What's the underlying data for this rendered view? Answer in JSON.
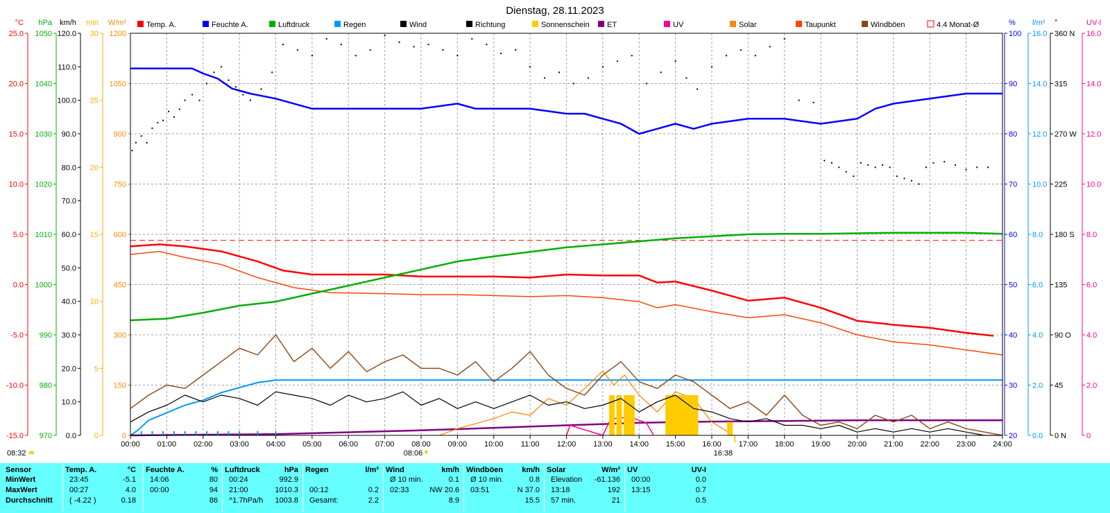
{
  "chart_data": {
    "type": "line",
    "title": "Dienstag, 28.11.2023",
    "x_ticks": [
      "00:00",
      "01:00",
      "02:00",
      "03:00",
      "04:00",
      "05:00",
      "06:00",
      "07:00",
      "08:00",
      "09:00",
      "10:00",
      "11:00",
      "12:00",
      "13:00",
      "14:00",
      "15:00",
      "16:00",
      "17:00",
      "18:00",
      "19:00",
      "20:00",
      "21:00",
      "22:00",
      "23:00",
      "24:00"
    ],
    "sunrise": "08:06",
    "sunset": "16:38",
    "sunshine_start": "08:32",
    "legend": [
      {
        "name": "Temp. A.",
        "color": "#ff0000"
      },
      {
        "name": "Feuchte A.",
        "color": "#0000ff"
      },
      {
        "name": "Luftdruck",
        "color": "#00b000"
      },
      {
        "name": "Regen",
        "color": "#0099ff"
      },
      {
        "name": "Wind",
        "color": "#000000"
      },
      {
        "name": "Richtung",
        "color": "#000000"
      },
      {
        "name": "Sonnenschein",
        "color": "#ffcc00"
      },
      {
        "name": "ET",
        "color": "#800080"
      },
      {
        "name": "UV",
        "color": "#ff0090"
      },
      {
        "name": "Solar",
        "color": "#ff8800"
      },
      {
        "name": "Taupunkt",
        "color": "#ff4400"
      },
      {
        "name": "Windböen",
        "color": "#8b4513"
      },
      {
        "name": "4.4 Monat-Ø",
        "color": "#ff0000"
      }
    ],
    "axes": {
      "temp": {
        "unit": "°C",
        "color": "#ff0000",
        "min": -15,
        "max": 25,
        "ticks": [
          "25.0",
          "20.0",
          "15.0",
          "10.0",
          "5.0",
          "0.0",
          "-5.0",
          "-10.0",
          "-15.0"
        ]
      },
      "pressure": {
        "unit": "hPa",
        "color": "#00b000",
        "min": 970,
        "max": 1050,
        "ticks": [
          "1050",
          "1040",
          "1030",
          "1020",
          "1010",
          "1000",
          "990",
          "980",
          "970"
        ]
      },
      "wind": {
        "unit": "km/h",
        "color": "#000000",
        "min": 0,
        "max": 120,
        "ticks": [
          "120.0",
          "110.0",
          "100.0",
          "90.0",
          "80.0",
          "70.0",
          "60.0",
          "50.0",
          "40.0",
          "30.0",
          "20.0",
          "10.0",
          "0.0"
        ]
      },
      "minutes": {
        "unit": "min",
        "color": "#ffaa00",
        "min": 0,
        "max": 30,
        "ticks": [
          "30",
          "25",
          "20",
          "15",
          "10",
          "5",
          "0"
        ]
      },
      "solar": {
        "unit": "W/m²",
        "color": "#ff8800",
        "min": 0,
        "max": 1200,
        "ticks": [
          "1200",
          "1050",
          "900",
          "750",
          "600",
          "450",
          "300",
          "150",
          "0"
        ]
      },
      "humidity": {
        "unit": "%",
        "color": "#0000ff",
        "min": 20,
        "max": 100,
        "ticks": [
          "100",
          "90",
          "80",
          "70",
          "60",
          "50",
          "40",
          "30",
          "20"
        ]
      },
      "rain": {
        "unit": "l/m²",
        "color": "#0099ff",
        "min": 0,
        "max": 16,
        "ticks": [
          "16.0",
          "14.0",
          "12.0",
          "10.0",
          "8.0",
          "6.0",
          "4.0",
          "2.0",
          "0.0"
        ]
      },
      "direction": {
        "unit": "°",
        "color": "#000000",
        "min": 0,
        "max": 360,
        "ticks": [
          "360 N",
          "315",
          "270 W",
          "225",
          "180 S",
          "135",
          "90 O",
          "45",
          "0 N"
        ]
      },
      "uv": {
        "unit": "UV-I",
        "color": "#ff0090",
        "min": 0,
        "max": 16,
        "ticks": [
          "16.0",
          "14.0",
          "12.0",
          "10.0",
          "8.0",
          "6.0",
          "4.0",
          "2.0",
          "0"
        ]
      }
    },
    "series": [
      {
        "name": "Temp. A.",
        "axis": "temp",
        "x": [
          0,
          0.8,
          1.5,
          2.5,
          3.5,
          4.2,
          5,
          6,
          7,
          8,
          9,
          10,
          11,
          12,
          13,
          14,
          14.5,
          15,
          16,
          17,
          18,
          19,
          20,
          21,
          22,
          23,
          23.75
        ],
        "values": [
          3.8,
          4.0,
          3.8,
          3.3,
          2.3,
          1.4,
          1.0,
          1.0,
          1.0,
          0.8,
          0.8,
          0.8,
          0.7,
          1.0,
          0.9,
          0.9,
          0.2,
          0.3,
          -0.6,
          -1.6,
          -1.3,
          -2.3,
          -3.6,
          -4.0,
          -4.3,
          -4.8,
          -5.1
        ]
      },
      {
        "name": "Taupunkt",
        "axis": "temp",
        "x": [
          0,
          0.8,
          1.5,
          2.5,
          3.5,
          4.5,
          5.5,
          7,
          8,
          9,
          10,
          11,
          12,
          13,
          14,
          14.5,
          15,
          16,
          17,
          18,
          19,
          20,
          21,
          22,
          23,
          24
        ],
        "values": [
          3.0,
          3.3,
          2.7,
          2.0,
          0.7,
          -0.3,
          -0.8,
          -0.9,
          -1.0,
          -1.0,
          -1.1,
          -1.2,
          -1.1,
          -1.3,
          -1.7,
          -2.3,
          -2.0,
          -2.7,
          -3.3,
          -3.0,
          -3.8,
          -5.0,
          -5.7,
          -6.0,
          -6.5,
          -7.0
        ]
      },
      {
        "name": "Feuchte A.",
        "axis": "humidity",
        "x": [
          0,
          1.7,
          2,
          2.4,
          2.8,
          3.3,
          4.0,
          5.0,
          6,
          7,
          8,
          9,
          9.5,
          10,
          11,
          12,
          12.5,
          13,
          13.5,
          14,
          14.5,
          15,
          15.5,
          16,
          17,
          18,
          19,
          20,
          20.5,
          21,
          22,
          23,
          24
        ],
        "values": [
          93,
          93,
          92,
          91,
          89,
          88,
          87,
          85,
          85,
          85,
          85,
          86,
          85,
          85,
          85,
          84,
          84,
          83,
          82,
          80,
          81,
          82,
          81,
          82,
          83,
          83,
          82,
          83,
          85,
          86,
          87,
          88,
          88
        ]
      },
      {
        "name": "Luftdruck",
        "axis": "pressure",
        "x": [
          0,
          1,
          2,
          3,
          4,
          5,
          6,
          7,
          8,
          9,
          10,
          11,
          12,
          13,
          14,
          15,
          16,
          17,
          18,
          19,
          20,
          21,
          22,
          23,
          24
        ],
        "values": [
          992.9,
          993.2,
          994.4,
          995.8,
          996.6,
          998.2,
          999.8,
          1001.4,
          1003.0,
          1004.6,
          1005.6,
          1006.5,
          1007.4,
          1008.0,
          1008.6,
          1009.2,
          1009.6,
          1010.0,
          1010.1,
          1010.1,
          1010.2,
          1010.3,
          1010.3,
          1010.3,
          1010.1
        ]
      },
      {
        "name": "Regen",
        "axis": "rain",
        "x": [
          0,
          0.2,
          0.5,
          1,
          1.5,
          2,
          2.5,
          3,
          3.5,
          4,
          24
        ],
        "values": [
          0,
          0.2,
          0.6,
          0.9,
          1.2,
          1.4,
          1.7,
          1.9,
          2.1,
          2.2,
          2.2
        ]
      },
      {
        "name": "ET",
        "axis": "uv",
        "x": [
          0,
          4,
          8,
          12,
          14,
          16,
          20,
          24
        ],
        "values": [
          0,
          0.05,
          0.2,
          0.4,
          0.5,
          0.55,
          0.6,
          0.6
        ]
      },
      {
        "name": "UV",
        "axis": "uv",
        "x": [
          12.0,
          12.1,
          13.0,
          13.2,
          13.4,
          13.8,
          14.2,
          14.4
        ],
        "values": [
          0.0,
          0.4,
          0.0,
          0.6,
          0.7,
          0.7,
          0.5,
          0.0
        ]
      },
      {
        "name": "Solar",
        "axis": "solar",
        "x": [
          8.5,
          9,
          9.5,
          10,
          10.5,
          11,
          11.5,
          12,
          12.5,
          13,
          13.3,
          13.6,
          14,
          14.5,
          15,
          15.5,
          16,
          16.3,
          16.6
        ],
        "values": [
          0,
          20,
          35,
          50,
          70,
          60,
          110,
          90,
          140,
          192,
          150,
          180,
          120,
          70,
          130,
          110,
          40,
          20,
          0
        ]
      },
      {
        "name": "Sonnenschein",
        "axis": "minutes",
        "x": [
          13.25,
          13.45,
          13.65,
          13.8,
          14.8,
          14.95,
          15.1,
          15.25,
          15.4,
          15.55,
          16.5
        ],
        "values": [
          3,
          3,
          3,
          3,
          3,
          3,
          3,
          3,
          3,
          3,
          1
        ]
      },
      {
        "name": "Wind",
        "axis": "wind",
        "x": [
          0,
          0.5,
          1,
          1.5,
          2,
          2.5,
          3,
          3.5,
          4,
          4.5,
          5,
          5.5,
          6,
          6.5,
          7,
          7.5,
          8,
          8.5,
          9,
          9.5,
          10,
          10.5,
          11,
          11.5,
          12,
          12.5,
          13,
          13.5,
          14,
          14.5,
          15,
          15.5,
          16,
          16.5,
          17,
          17.5,
          18,
          18.5,
          19,
          19.5,
          20,
          20.5,
          21,
          21.5,
          22,
          22.5,
          23,
          23.5,
          24
        ],
        "values": [
          4,
          7,
          9,
          12,
          10,
          12,
          11,
          9,
          13,
          12,
          11,
          9,
          12,
          10,
          11,
          13,
          9,
          11,
          8,
          10,
          8,
          10,
          12,
          9,
          10,
          8,
          9,
          11,
          7,
          10,
          12,
          8,
          7,
          5,
          4,
          5,
          3,
          3,
          2,
          3,
          1,
          2,
          1,
          2,
          1,
          2,
          1,
          0,
          0
        ]
      },
      {
        "name": "Windböen",
        "axis": "wind",
        "x": [
          0,
          0.5,
          1,
          1.5,
          2,
          2.5,
          3,
          3.5,
          4,
          4.5,
          5,
          5.5,
          6,
          6.5,
          7,
          7.5,
          8,
          8.5,
          9,
          9.5,
          10,
          10.5,
          11,
          11.5,
          12,
          12.5,
          13,
          13.5,
          14,
          14.5,
          15,
          15.5,
          16,
          16.5,
          17,
          17.5,
          18,
          18.5,
          19,
          19.5,
          20,
          20.5,
          21,
          21.5,
          22,
          22.5,
          23,
          23.5,
          24
        ],
        "values": [
          8,
          12,
          15,
          14,
          18,
          22,
          26,
          24,
          30,
          22,
          26,
          20,
          25,
          19,
          22,
          24,
          20,
          20,
          18,
          22,
          16,
          20,
          25,
          18,
          14,
          12,
          18,
          22,
          16,
          14,
          18,
          16,
          12,
          8,
          10,
          6,
          12,
          6,
          3,
          4,
          2,
          6,
          4,
          6,
          2,
          4,
          2,
          1,
          0
        ]
      },
      {
        "name": "Richtung",
        "axis": "direction",
        "type": "scatter",
        "x": [
          0.05,
          0.15,
          0.3,
          0.45,
          0.6,
          0.75,
          0.9,
          1.05,
          1.2,
          1.35,
          1.5,
          1.7,
          1.9,
          2.1,
          2.3,
          2.5,
          2.7,
          2.9,
          3.1,
          3.3,
          3.6,
          3.9,
          4.2,
          4.6,
          5,
          5.4,
          5.8,
          6.2,
          6.6,
          7,
          7.4,
          7.8,
          8.2,
          8.6,
          9,
          9.4,
          9.8,
          10.2,
          10.6,
          11,
          11.4,
          11.8,
          12.2,
          12.6,
          13,
          13.4,
          13.8,
          14.2,
          14.6,
          15,
          15.3,
          15.6,
          16,
          16.4,
          16.8,
          17.2,
          17.6,
          18,
          18.4,
          18.8,
          19.1,
          19.3,
          19.5,
          19.7,
          19.9,
          20.1,
          20.3,
          20.5,
          20.7,
          20.9,
          21.1,
          21.3,
          21.5,
          21.7,
          21.9,
          22.1,
          22.4,
          22.7,
          23,
          23.3,
          23.6
        ],
        "values": [
          255,
          262,
          268,
          262,
          275,
          280,
          282,
          290,
          285,
          292,
          300,
          305,
          300,
          315,
          325,
          330,
          318,
          312,
          305,
          300,
          310,
          325,
          350,
          345,
          340,
          355,
          350,
          340,
          345,
          358,
          352,
          348,
          350,
          345,
          340,
          355,
          350,
          342,
          345,
          330,
          320,
          325,
          315,
          320,
          330,
          335,
          340,
          315,
          325,
          335,
          320,
          310,
          330,
          340,
          345,
          340,
          348,
          355,
          300,
          298,
          246,
          244,
          240,
          236,
          232,
          244,
          242,
          240,
          242,
          240,
          232,
          230,
          228,
          225,
          240,
          244,
          245,
          242,
          238,
          240,
          240
        ]
      }
    ]
  },
  "stats": {
    "headers": [
      {
        "name": "Sensor",
        "unit": ""
      },
      {
        "name": "Temp. A.",
        "unit": "°C"
      },
      {
        "name": "Feuchte A.",
        "unit": "%"
      },
      {
        "name": "Luftdruck",
        "unit": "hPa"
      },
      {
        "name": "Regen",
        "unit": "l/m²"
      },
      {
        "name": "Wind",
        "unit": "km/h"
      },
      {
        "name": "Windböen",
        "unit": "km/h"
      },
      {
        "name": "Solar",
        "unit": "W/m²"
      },
      {
        "name": "UV",
        "unit": "UV-I"
      }
    ],
    "rows": [
      {
        "label": "MinWert",
        "cells": [
          [
            "23:45",
            "-5.1"
          ],
          [
            "14:06",
            "80"
          ],
          [
            "00:24",
            "992.9"
          ],
          [
            "",
            ""
          ],
          [
            "Ø 10 min.",
            "0.1"
          ],
          [
            "Ø 10 min.",
            "0.8"
          ],
          [
            "Elevation",
            "-61.136"
          ],
          [
            "00:00",
            "0.0"
          ]
        ]
      },
      {
        "label": "MaxWert",
        "cells": [
          [
            "00:27",
            "4.0"
          ],
          [
            "00:00",
            "94"
          ],
          [
            "21:00",
            "1010.3"
          ],
          [
            "00:12",
            "0.2"
          ],
          [
            "02:33",
            "NW 20.6"
          ],
          [
            "03:51",
            "N 37.0"
          ],
          [
            "13:18",
            "192"
          ],
          [
            "13:15",
            "0.7"
          ]
        ]
      },
      {
        "label": "Durchschnitt",
        "cells": [
          [
            "( -4.22 )",
            "0.18"
          ],
          [
            "",
            "86"
          ],
          [
            "^1.7hPa/h",
            "1003.8"
          ],
          [
            "Gesamt:",
            "2.2"
          ],
          [
            "",
            "8.9"
          ],
          [
            "",
            "15.5"
          ],
          [
            "57 min.",
            "21"
          ],
          [
            "",
            "0.5"
          ]
        ]
      }
    ]
  }
}
